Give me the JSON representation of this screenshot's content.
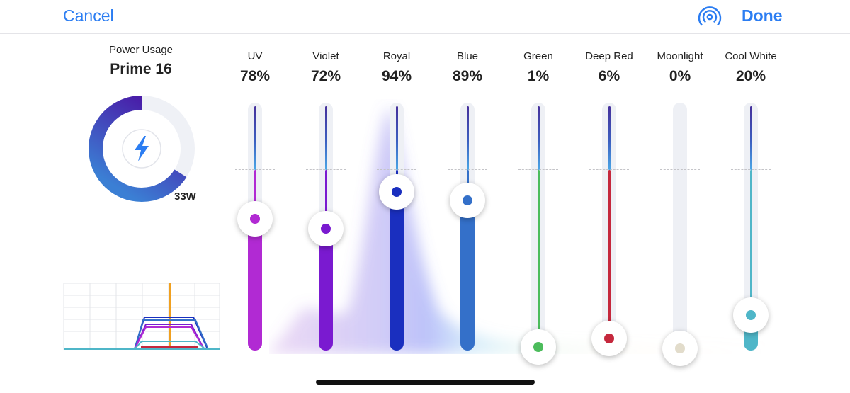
{
  "nav": {
    "cancel_label": "Cancel",
    "done_label": "Done"
  },
  "power": {
    "label": "Power Usage",
    "device": "Prime 16",
    "watts": "33W",
    "usage_fraction": 0.66
  },
  "channels": [
    {
      "name": "UV",
      "value": "78%",
      "level": 0.78,
      "color": "#b12ad3"
    },
    {
      "name": "Violet",
      "value": "72%",
      "level": 0.72,
      "color": "#7a1ad0"
    },
    {
      "name": "Royal",
      "value": "94%",
      "level": 0.94,
      "color": "#1a2fbf"
    },
    {
      "name": "Blue",
      "value": "89%",
      "level": 0.89,
      "color": "#3470c9"
    },
    {
      "name": "Green",
      "value": "1%",
      "level": 0.01,
      "color": "#4cbc5c"
    },
    {
      "name": "Deep Red",
      "value": "6%",
      "level": 0.06,
      "color": "#c5283d"
    },
    {
      "name": "Moonlight",
      "value": "0%",
      "level": 0.0,
      "color": "#e2dccb"
    },
    {
      "name": "Cool White",
      "value": "20%",
      "level": 0.2,
      "color": "#4fb6c8"
    }
  ],
  "colors": {
    "accent": "#2b7df2",
    "gauge_start": "#4a18a6",
    "gauge_end": "#3b7fd4"
  },
  "icons": {
    "broadcast": "broadcast-icon",
    "bolt": "lightning-bolt-icon"
  }
}
